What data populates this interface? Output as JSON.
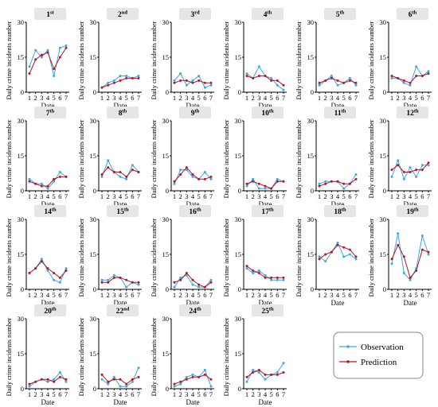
{
  "colors": {
    "observation": "#3ea8dc",
    "prediction": "#b0182a",
    "axis": "#000000",
    "title_bg": "#e6e6e6"
  },
  "legend": {
    "observation_label": "Observation",
    "prediction_label": "Prediction",
    "placement": "bottom-right"
  },
  "chart_data": [
    {
      "type": "line",
      "title": "1st",
      "title_num": "1",
      "title_sup": "st",
      "xlabel": "Date",
      "ylabel": "Daily crime incidents number",
      "x": [
        1,
        2,
        3,
        4,
        5,
        6,
        7
      ],
      "ylim": [
        0,
        30
      ],
      "yticks": [
        0,
        15,
        30
      ],
      "series": [
        {
          "name": "Observation",
          "values": [
            11,
            18,
            15,
            18,
            7,
            19,
            20
          ]
        },
        {
          "name": "Prediction",
          "values": [
            8,
            14,
            16,
            17,
            10,
            15,
            19
          ]
        }
      ]
    },
    {
      "type": "line",
      "title": "2nd",
      "title_num": "2",
      "title_sup": "nd",
      "xlabel": "Date",
      "ylabel": "Daily crime incidents number",
      "x": [
        1,
        2,
        3,
        4,
        5,
        6,
        7
      ],
      "ylim": [
        0,
        30
      ],
      "yticks": [
        0,
        15,
        30
      ],
      "series": [
        {
          "name": "Observation",
          "values": [
            2,
            4,
            5,
            7,
            7,
            6,
            7
          ]
        },
        {
          "name": "Prediction",
          "values": [
            2,
            3,
            4,
            5,
            6,
            6,
            6
          ]
        }
      ]
    },
    {
      "type": "line",
      "title": "3rd",
      "title_num": "3",
      "title_sup": "rd",
      "xlabel": "Date",
      "ylabel": "Daily crime incidents number",
      "x": [
        1,
        2,
        3,
        4,
        5,
        6,
        7
      ],
      "ylim": [
        0,
        30
      ],
      "yticks": [
        0,
        15,
        30
      ],
      "series": [
        {
          "name": "Observation",
          "values": [
            5,
            8,
            3,
            5,
            7,
            2,
            3
          ]
        },
        {
          "name": "Prediction",
          "values": [
            4,
            5,
            5,
            4,
            5,
            4,
            4
          ]
        }
      ]
    },
    {
      "type": "line",
      "title": "4th",
      "title_num": "4",
      "title_sup": "th",
      "xlabel": "Date",
      "ylabel": "Daily crime incidents number",
      "x": [
        1,
        2,
        3,
        4,
        5,
        6,
        7
      ],
      "ylim": [
        0,
        30
      ],
      "yticks": [
        0,
        15,
        30
      ],
      "series": [
        {
          "name": "Observation",
          "values": [
            8,
            6,
            11,
            7,
            6,
            3,
            1
          ]
        },
        {
          "name": "Prediction",
          "values": [
            7,
            6,
            7,
            7,
            5,
            5,
            3
          ]
        }
      ]
    },
    {
      "type": "line",
      "title": "5th",
      "title_num": "5",
      "title_sup": "th",
      "xlabel": "Date",
      "ylabel": "Daily crime incidents number",
      "x": [
        1,
        2,
        3,
        4,
        5,
        6,
        7
      ],
      "ylim": [
        0,
        30
      ],
      "yticks": [
        0,
        15,
        30
      ],
      "series": [
        {
          "name": "Observation",
          "values": [
            3,
            5,
            7,
            3,
            4,
            6,
            3
          ]
        },
        {
          "name": "Prediction",
          "values": [
            4,
            5,
            6,
            5,
            4,
            5,
            4
          ]
        }
      ]
    },
    {
      "type": "line",
      "title": "6th",
      "title_num": "6",
      "title_sup": "th",
      "xlabel": "Date",
      "ylabel": "Daily crime incidents number",
      "x": [
        1,
        2,
        3,
        4,
        5,
        6,
        7
      ],
      "ylim": [
        0,
        30
      ],
      "yticks": [
        0,
        15,
        30
      ],
      "series": [
        {
          "name": "Observation",
          "values": [
            6,
            6,
            4,
            3,
            11,
            7,
            9
          ]
        },
        {
          "name": "Prediction",
          "values": [
            7,
            6,
            5,
            4,
            7,
            7,
            8
          ]
        }
      ]
    },
    {
      "type": "line",
      "title": "7th",
      "title_num": "7",
      "title_sup": "th",
      "xlabel": "Date",
      "ylabel": "Daily crime incidents number",
      "x": [
        1,
        2,
        3,
        4,
        5,
        6,
        7
      ],
      "ylim": [
        0,
        30
      ],
      "yticks": [
        0,
        15,
        30
      ],
      "series": [
        {
          "name": "Observation",
          "values": [
            5,
            3,
            3,
            1,
            4,
            8,
            6
          ]
        },
        {
          "name": "Prediction",
          "values": [
            4,
            3,
            2,
            2,
            5,
            6,
            6
          ]
        }
      ]
    },
    {
      "type": "line",
      "title": "8th",
      "title_num": "8",
      "title_sup": "th",
      "xlabel": "Date",
      "ylabel": "Daily crime incidents number",
      "x": [
        1,
        2,
        3,
        4,
        5,
        6,
        7
      ],
      "ylim": [
        0,
        30
      ],
      "yticks": [
        0,
        15,
        30
      ],
      "series": [
        {
          "name": "Observation",
          "values": [
            6,
            13,
            8,
            6,
            5,
            11,
            8
          ]
        },
        {
          "name": "Prediction",
          "values": [
            7,
            10,
            8,
            8,
            6,
            9,
            8
          ]
        }
      ]
    },
    {
      "type": "line",
      "title": "9th",
      "title_num": "9",
      "title_sup": "th",
      "xlabel": "Date",
      "ylabel": "Daily crime incidents number",
      "x": [
        1,
        2,
        3,
        4,
        5,
        6,
        7
      ],
      "ylim": [
        0,
        30
      ],
      "yticks": [
        0,
        15,
        30
      ],
      "series": [
        {
          "name": "Observation",
          "values": [
            3,
            9,
            9,
            6,
            5,
            8,
            5
          ]
        },
        {
          "name": "Prediction",
          "values": [
            4,
            7,
            10,
            7,
            5,
            5,
            6
          ]
        }
      ]
    },
    {
      "type": "line",
      "title": "10th",
      "title_num": "10",
      "title_sup": "th",
      "xlabel": "Date",
      "ylabel": "Daily crime incidents number",
      "x": [
        1,
        2,
        3,
        4,
        5,
        6,
        7
      ],
      "ylim": [
        0,
        30
      ],
      "yticks": [
        0,
        15,
        30
      ],
      "series": [
        {
          "name": "Observation",
          "values": [
            2,
            5,
            1,
            1,
            1,
            5,
            4
          ]
        },
        {
          "name": "Prediction",
          "values": [
            3,
            4,
            3,
            2,
            1,
            4,
            4
          ]
        }
      ]
    },
    {
      "type": "line",
      "title": "11th",
      "title_num": "11",
      "title_sup": "th",
      "xlabel": "Date",
      "ylabel": "Daily crime incidents number",
      "x": [
        1,
        2,
        3,
        4,
        5,
        6,
        7
      ],
      "ylim": [
        0,
        30
      ],
      "yticks": [
        0,
        15,
        30
      ],
      "series": [
        {
          "name": "Observation",
          "values": [
            3,
            4,
            4,
            4,
            1,
            3,
            7
          ]
        },
        {
          "name": "Prediction",
          "values": [
            2,
            3,
            4,
            4,
            3,
            3,
            5
          ]
        }
      ]
    },
    {
      "type": "line",
      "title": "12th",
      "title_num": "12",
      "title_sup": "th",
      "xlabel": "Date",
      "ylabel": "Daily crime incidents number",
      "x": [
        1,
        2,
        3,
        4,
        5,
        6,
        7
      ],
      "ylim": [
        0,
        30
      ],
      "yticks": [
        0,
        15,
        30
      ],
      "series": [
        {
          "name": "Observation",
          "values": [
            6,
            13,
            5,
            10,
            6,
            11,
            11
          ]
        },
        {
          "name": "Prediction",
          "values": [
            9,
            11,
            8,
            8,
            9,
            9,
            12
          ]
        }
      ]
    },
    {
      "type": "line",
      "title": "14th",
      "title_num": "14",
      "title_sup": "th",
      "xlabel": "Date",
      "ylabel": "Daily crime incidents number",
      "x": [
        1,
        2,
        3,
        4,
        5,
        6,
        7
      ],
      "ylim": [
        0,
        30
      ],
      "yticks": [
        0,
        15,
        30
      ],
      "series": [
        {
          "name": "Observation",
          "values": [
            7,
            9,
            13,
            8,
            4,
            3,
            9
          ]
        },
        {
          "name": "Prediction",
          "values": [
            7,
            9,
            12,
            9,
            7,
            5,
            8
          ]
        }
      ]
    },
    {
      "type": "line",
      "title": "15th",
      "title_num": "15",
      "title_sup": "th",
      "xlabel": "Date",
      "ylabel": "Daily crime incidents number",
      "x": [
        1,
        2,
        3,
        4,
        5,
        6,
        7
      ],
      "ylim": [
        0,
        30
      ],
      "yticks": [
        0,
        15,
        30
      ],
      "series": [
        {
          "name": "Observation",
          "values": [
            4,
            4,
            6,
            5,
            1,
            3,
            2
          ]
        },
        {
          "name": "Prediction",
          "values": [
            3,
            3,
            5,
            5,
            4,
            3,
            3
          ]
        }
      ]
    },
    {
      "type": "line",
      "title": "16th",
      "title_num": "16",
      "title_sup": "th",
      "xlabel": "Date",
      "ylabel": "Daily crime incidents number",
      "x": [
        1,
        2,
        3,
        4,
        5,
        6,
        7
      ],
      "ylim": [
        0,
        30
      ],
      "yticks": [
        0,
        15,
        30
      ],
      "series": [
        {
          "name": "Observation",
          "values": [
            1,
            5,
            6,
            2,
            1,
            1,
            4
          ]
        },
        {
          "name": "Prediction",
          "values": [
            3,
            4,
            7,
            4,
            2,
            1,
            3
          ]
        }
      ]
    },
    {
      "type": "line",
      "title": "17th",
      "title_num": "17",
      "title_sup": "th",
      "xlabel": "Date",
      "ylabel": "Daily crime incidents number",
      "x": [
        1,
        2,
        3,
        4,
        5,
        6,
        7
      ],
      "ylim": [
        0,
        30
      ],
      "yticks": [
        0,
        15,
        30
      ],
      "series": [
        {
          "name": "Observation",
          "values": [
            9,
            7,
            8,
            6,
            4,
            4,
            4
          ]
        },
        {
          "name": "Prediction",
          "values": [
            10,
            8,
            7,
            5,
            5,
            5,
            5
          ]
        }
      ]
    },
    {
      "type": "line",
      "title": "18th",
      "title_num": "18",
      "title_sup": "th",
      "xlabel": "Date",
      "ylabel": "Daily crime incidents number",
      "x": [
        1,
        2,
        3,
        4,
        5,
        6,
        7
      ],
      "ylim": [
        0,
        30
      ],
      "yticks": [
        0,
        15,
        30
      ],
      "series": [
        {
          "name": "Observation",
          "values": [
            14,
            12,
            16,
            20,
            14,
            15,
            13
          ]
        },
        {
          "name": "Prediction",
          "values": [
            13,
            15,
            16,
            19,
            18,
            17,
            14
          ]
        }
      ]
    },
    {
      "type": "line",
      "title": "19th",
      "title_num": "19",
      "title_sup": "th",
      "xlabel": "Date",
      "ylabel": "Daily crime incidents number",
      "x": [
        1,
        2,
        3,
        4,
        5,
        6,
        7
      ],
      "ylim": [
        0,
        30
      ],
      "yticks": [
        0,
        15,
        30
      ],
      "series": [
        {
          "name": "Observation",
          "values": [
            11,
            24,
            7,
            4,
            9,
            23,
            15
          ]
        },
        {
          "name": "Prediction",
          "values": [
            13,
            19,
            14,
            5,
            8,
            17,
            16
          ]
        }
      ]
    },
    {
      "type": "line",
      "title": "20th",
      "title_num": "20",
      "title_sup": "th",
      "xlabel": "Date",
      "ylabel": "Daily crime incidents number",
      "x": [
        1,
        2,
        3,
        4,
        5,
        6,
        7
      ],
      "ylim": [
        0,
        30
      ],
      "yticks": [
        0,
        15,
        30
      ],
      "series": [
        {
          "name": "Observation",
          "values": [
            1,
            3,
            4,
            3,
            4,
            7,
            3
          ]
        },
        {
          "name": "Prediction",
          "values": [
            2,
            3,
            4,
            4,
            3,
            5,
            4
          ]
        }
      ]
    },
    {
      "type": "line",
      "title": "22nd",
      "title_num": "22",
      "title_sup": "nd",
      "xlabel": "Date",
      "ylabel": "Daily crime incidents number",
      "x": [
        1,
        2,
        3,
        4,
        5,
        6,
        7
      ],
      "ylim": [
        0,
        30
      ],
      "yticks": [
        0,
        15,
        30
      ],
      "series": [
        {
          "name": "Observation",
          "values": [
            4,
            2,
            5,
            1,
            1,
            3,
            9
          ]
        },
        {
          "name": "Prediction",
          "values": [
            6,
            3,
            4,
            4,
            2,
            4,
            5
          ]
        }
      ]
    },
    {
      "type": "line",
      "title": "24th",
      "title_num": "24",
      "title_sup": "th",
      "xlabel": "Date",
      "ylabel": "Daily crime incidents number",
      "x": [
        1,
        2,
        3,
        4,
        5,
        6,
        7
      ],
      "ylim": [
        0,
        30
      ],
      "yticks": [
        0,
        15,
        30
      ],
      "series": [
        {
          "name": "Observation",
          "values": [
            1,
            2,
            5,
            6,
            5,
            8,
            1
          ]
        },
        {
          "name": "Prediction",
          "values": [
            2,
            3,
            4,
            5,
            5,
            6,
            4
          ]
        }
      ]
    },
    {
      "type": "line",
      "title": "25th",
      "title_num": "25",
      "title_sup": "th",
      "xlabel": "Date",
      "ylabel": "Daily crime incidents number",
      "x": [
        1,
        2,
        3,
        4,
        5,
        6,
        7
      ],
      "ylim": [
        0,
        30
      ],
      "yticks": [
        0,
        15,
        30
      ],
      "series": [
        {
          "name": "Observation",
          "values": [
            3,
            8,
            7,
            4,
            6,
            7,
            11
          ]
        },
        {
          "name": "Prediction",
          "values": [
            5,
            7,
            8,
            6,
            6,
            6,
            7
          ]
        }
      ]
    }
  ]
}
